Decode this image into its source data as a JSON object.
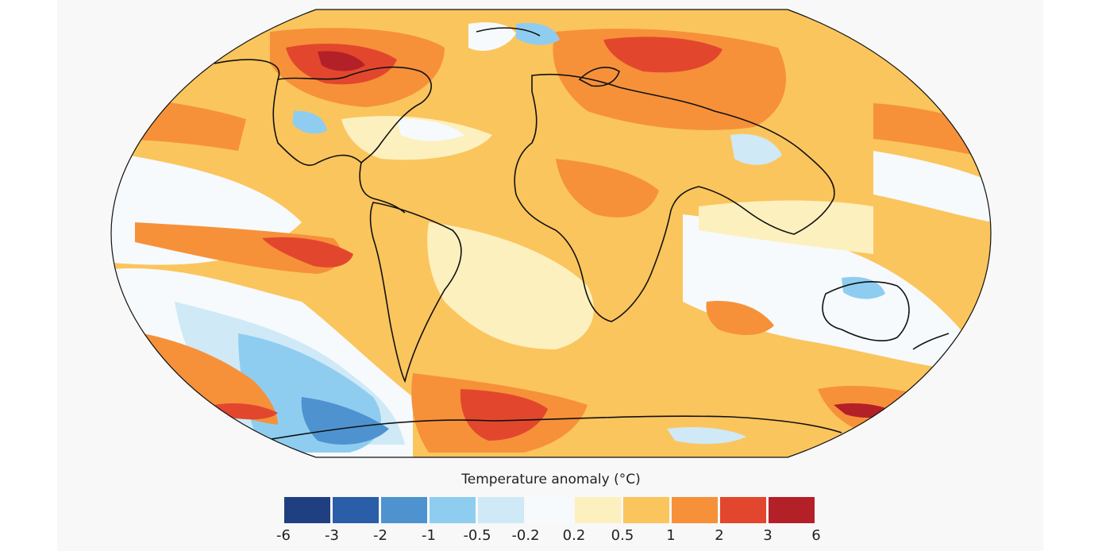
{
  "map": {
    "projection": "robinson",
    "variable": "surface air temperature anomaly"
  },
  "legend": {
    "title": "Temperature anomaly (°C)",
    "ticks": [
      "-6",
      "-3",
      "-2",
      "-1",
      "-0.5",
      "-0.2",
      "0.2",
      "0.5",
      "1",
      "2",
      "3",
      "6"
    ],
    "colors": [
      "#1f3f80",
      "#2a5ea8",
      "#4e93d0",
      "#8fcdf0",
      "#cfe9f7",
      "#f6fafd",
      "#fdf0bf",
      "#fbc55d",
      "#f6913a",
      "#e2472e",
      "#b42028"
    ]
  }
}
